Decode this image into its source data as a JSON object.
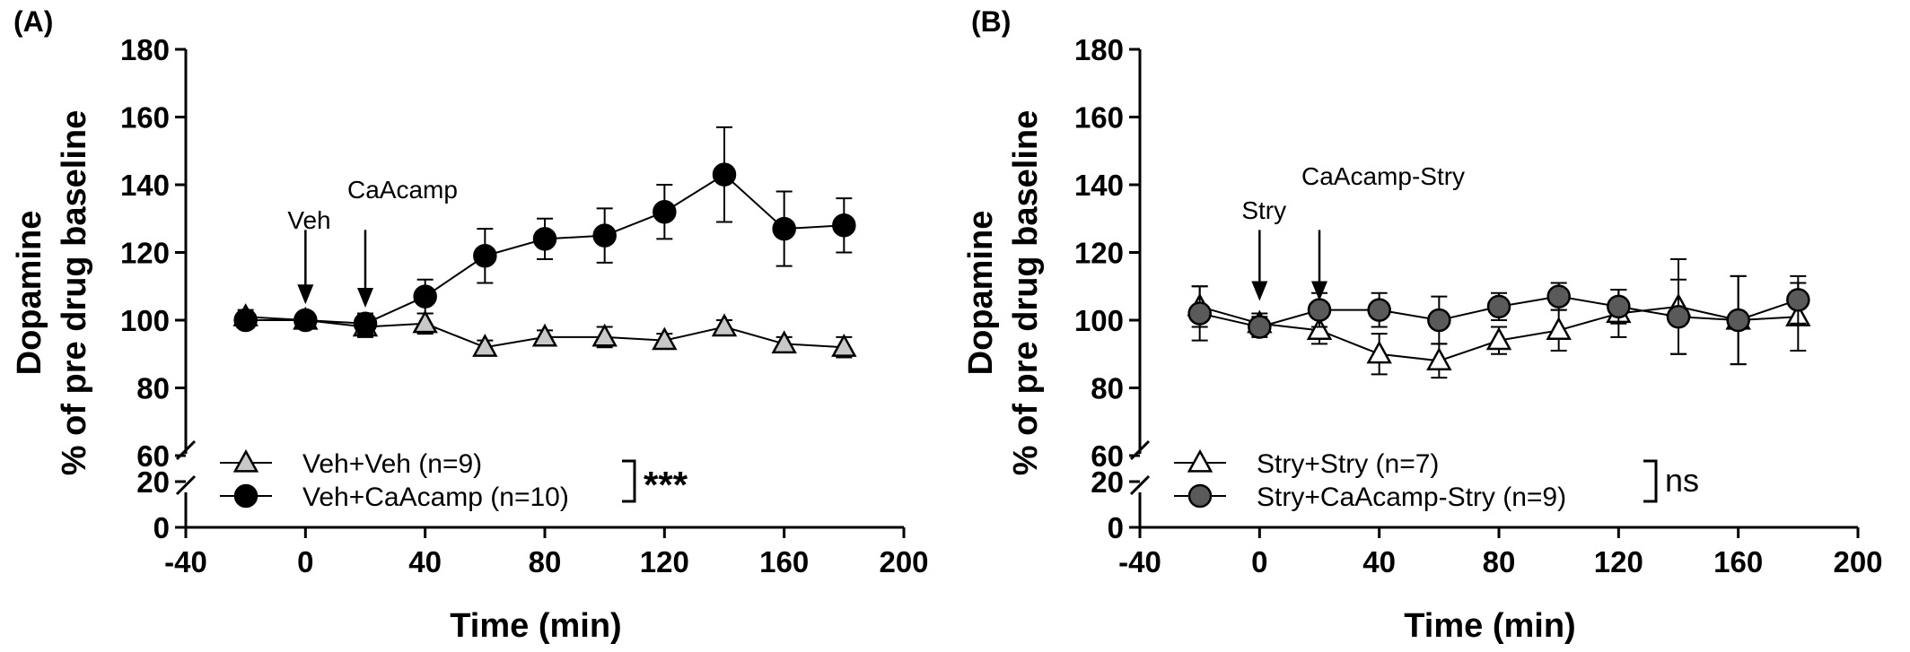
{
  "chart_data": [
    {
      "type": "line",
      "panel_label": "(A)",
      "xlabel": "Time (min)",
      "ylabel_lines": [
        "Dopamine",
        "% of pre drug baseline"
      ],
      "xlim": [
        -40,
        200
      ],
      "xticks": [
        -40,
        0,
        40,
        80,
        120,
        160,
        200
      ],
      "ylim_upper": [
        60,
        180
      ],
      "yticks_upper": [
        60,
        80,
        100,
        120,
        140,
        160,
        180
      ],
      "ylim_lower": [
        0,
        20
      ],
      "yticks_lower": [
        0,
        20
      ],
      "axis_break": true,
      "grid": false,
      "legend_position": "bottom-left",
      "series": [
        {
          "name": "Veh+Veh (n=9)",
          "marker": "triangle",
          "color": "#c8c8c8",
          "x": [
            -20,
            0,
            20,
            40,
            60,
            80,
            100,
            120,
            140,
            160,
            180
          ],
          "y": [
            101,
            100,
            98,
            99,
            92,
            95,
            95,
            94,
            98,
            93,
            92
          ],
          "err": [
            2,
            2,
            3,
            3,
            2,
            2,
            3,
            2,
            2,
            2,
            3
          ]
        },
        {
          "name": "Veh+CaAcamp (n=10)",
          "marker": "circle",
          "color": "#000000",
          "x": [
            -20,
            0,
            20,
            40,
            60,
            80,
            100,
            120,
            140,
            160,
            180
          ],
          "y": [
            100,
            100,
            99,
            107,
            119,
            124,
            125,
            132,
            143,
            127,
            128
          ],
          "err": [
            2,
            2,
            3,
            5,
            8,
            6,
            8,
            8,
            14,
            11,
            8
          ]
        }
      ],
      "annotations": [
        {
          "text": "Veh",
          "x": 0,
          "tip_y": 101,
          "label_y": 127,
          "tail_y": 124
        },
        {
          "text": "CaAcamp",
          "x": 20,
          "tip_y": 100,
          "label_y": 136,
          "tail_y": 124
        }
      ],
      "significance": "***"
    },
    {
      "type": "line",
      "panel_label": "(B)",
      "xlabel": "Time (min)",
      "ylabel_lines": [
        "Dopamine",
        "% of pre drug baseline"
      ],
      "xlim": [
        -40,
        200
      ],
      "xticks": [
        -40,
        0,
        40,
        80,
        120,
        160,
        200
      ],
      "ylim_upper": [
        60,
        180
      ],
      "yticks_upper": [
        60,
        80,
        100,
        120,
        140,
        160,
        180
      ],
      "ylim_lower": [
        0,
        20
      ],
      "yticks_lower": [
        0,
        20
      ],
      "axis_break": true,
      "grid": false,
      "legend_position": "bottom-left",
      "series": [
        {
          "name": "Stry+Stry (n=7)",
          "marker": "triangle",
          "color": "#ffffff",
          "x": [
            -20,
            0,
            20,
            40,
            60,
            80,
            100,
            120,
            140,
            160,
            180
          ],
          "y": [
            104,
            99,
            97,
            90,
            88,
            94,
            97,
            102,
            104,
            100,
            101
          ],
          "err": [
            6,
            3,
            4,
            6,
            5,
            4,
            6,
            7,
            14,
            13,
            10
          ]
        },
        {
          "name": "Stry+CaAcamp-Stry (n=9)",
          "marker": "circle",
          "color": "#5a5a5a",
          "x": [
            -20,
            0,
            20,
            40,
            60,
            80,
            100,
            120,
            140,
            160,
            180
          ],
          "y": [
            102,
            98,
            103,
            103,
            100,
            104,
            107,
            104,
            101,
            100,
            106
          ],
          "err": [
            8,
            3,
            5,
            5,
            7,
            4,
            4,
            5,
            11,
            13,
            7
          ]
        }
      ],
      "annotations": [
        {
          "text": "Stry",
          "x": 0,
          "tip_y": 102,
          "label_y": 130,
          "tail_y": 124
        },
        {
          "text": "CaAcamp-Stry",
          "x": 20,
          "tip_y": 102,
          "label_y": 140,
          "tail_y": 124
        }
      ],
      "significance": "ns"
    }
  ]
}
